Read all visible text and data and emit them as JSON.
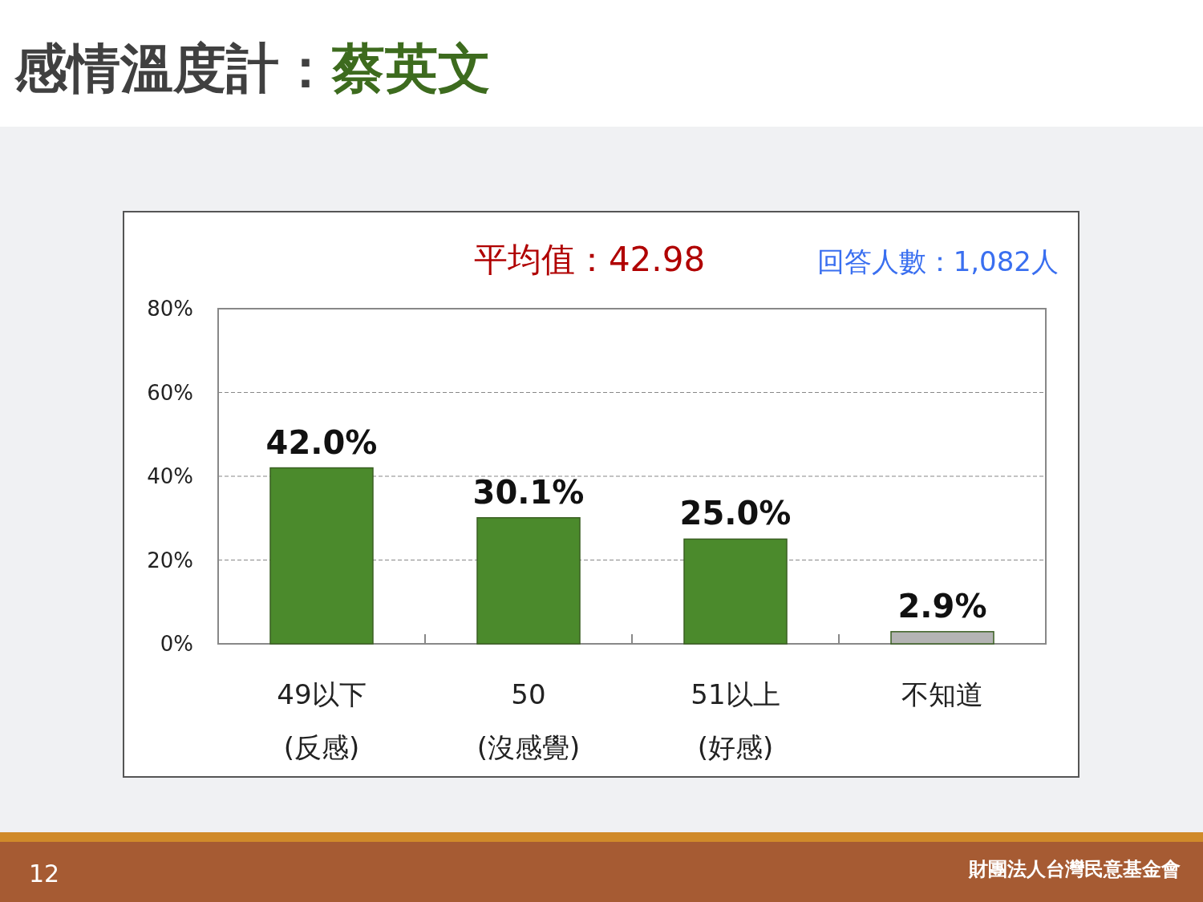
{
  "chart_data": {
    "type": "bar",
    "title": "感情溫度計：蔡英文",
    "categories": [
      "49以下\n(反感)",
      "50\n(沒感覺)",
      "51以上\n(好感)",
      "不知道"
    ],
    "values": [
      42.0,
      30.1,
      25.0,
      2.9
    ],
    "colors": [
      "#4b8a2c",
      "#4b8a2c",
      "#4b8a2c",
      "#b4b4b4"
    ],
    "value_labels": [
      "42.0%",
      "30.1%",
      "25.0%",
      "2.9%"
    ],
    "ylim": [
      0,
      80
    ],
    "yticks": [
      {
        "value": 0,
        "label": "0%"
      },
      {
        "value": 20,
        "label": "20%"
      },
      {
        "value": 40,
        "label": "40%"
      },
      {
        "value": 60,
        "label": "60%"
      },
      {
        "value": 80,
        "label": "80%"
      }
    ],
    "grid": "y",
    "annotations": [
      "平均值：42.98",
      "回答人數：1,082人",
      "12",
      "財團法人台灣民意基金會"
    ]
  }
}
